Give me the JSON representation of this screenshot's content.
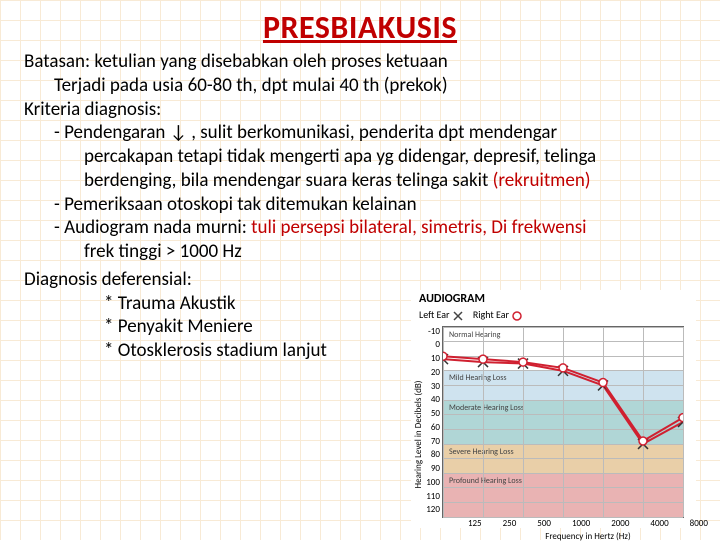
{
  "title": "PRESBIAKUSIS",
  "lines": {
    "batasan": "Batasan: ketulian yang disebabkan oleh proses ketuaan",
    "terjadi": "Terjadi pada usia 60-80 th, dpt mulai 40 th (prekok)",
    "kriteria": "Kriteria diagnosis:",
    "p1a": "- Pendengaran  ↓   , sulit berkomunikasi,  penderita dpt mendengar",
    "p1b": "percakapan tetapi tidak mengerti apa yg didengar, depresif, telinga",
    "p1c_pre": "berdenging,  bila   mendengar suara keras telinga sakit ",
    "p1c_red": "(rekruitmen)",
    "p2": "- Pemeriksaan otoskopi tak ditemukan kelainan",
    "p3_pre": "- Audiogram nada murni: ",
    "p3_red": "tuli persepsi bilateral, simetris,  Di frekwensi",
    "p3b": "frek tinggi > 1000 Hz",
    "diag": "Diagnosis deferensial:",
    "d1": "* Trauma Akustik",
    "d2": "* Penyakit Meniere",
    "d3": "* Otosklerosis stadium lanjut"
  },
  "audiogram": {
    "title": "AUDIOGRAM",
    "legend_left": "Left Ear",
    "legend_right": "Right Ear",
    "ylabel": "Hearing Level in Decibels (dB)",
    "xlabel": "Frequency in Hertz (Hz)",
    "yticks": [
      "-10",
      "0",
      "10",
      "20",
      "30",
      "40",
      "50",
      "60",
      "70",
      "80",
      "90",
      "100",
      "110",
      "120"
    ],
    "xticks": [
      "125",
      "250",
      "500",
      "1000",
      "2000",
      "4000",
      "8000"
    ],
    "ylim": [
      -10,
      120
    ],
    "bands": [
      {
        "from": -10,
        "to": 20,
        "color": "#ffffff",
        "label": "Normal Hearing"
      },
      {
        "from": 20,
        "to": 40,
        "color": "#cfe3ef",
        "label": "Mild Hearing Loss"
      },
      {
        "from": 40,
        "to": 70,
        "color": "#b0d6d6",
        "label": "Moderate Hearing Loss"
      },
      {
        "from": 70,
        "to": 90,
        "color": "#e9cfa8",
        "label": "Severe Hearing Loss"
      },
      {
        "from": 90,
        "to": 120,
        "color": "#e9b3b3",
        "label": "Profound Hearing Loss"
      }
    ],
    "series": {
      "left": {
        "color": "#d02030",
        "marker": "x",
        "values": [
          12,
          14,
          15,
          20,
          30,
          70,
          55
        ]
      },
      "right": {
        "color": "#d02030",
        "marker": "o",
        "values": [
          10,
          12,
          14,
          18,
          28,
          68,
          52
        ]
      }
    },
    "line_width": 2,
    "marker_size": 5,
    "grid_color": "#bbbbbb",
    "border_color": "#666666"
  }
}
